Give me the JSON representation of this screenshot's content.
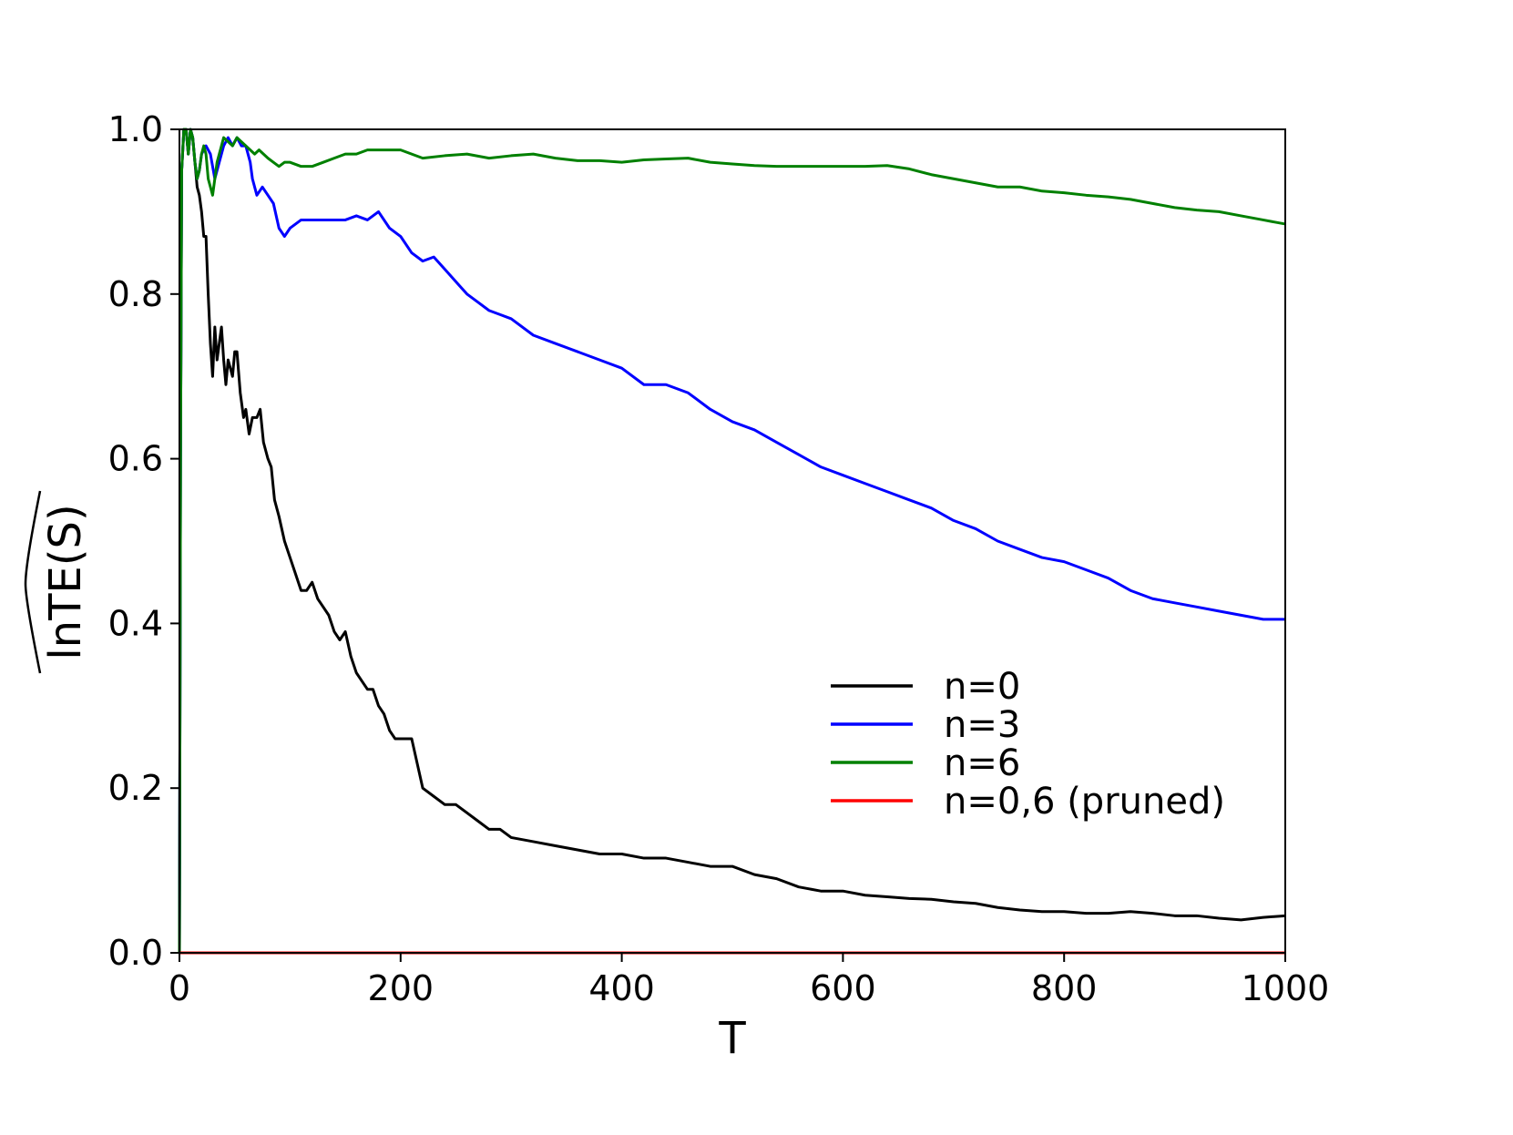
{
  "chart_data": {
    "type": "line",
    "title": "",
    "xlabel": "T",
    "ylabel": "lnTE(S)",
    "ylabel_hat": true,
    "xlim": [
      0,
      1000
    ],
    "ylim": [
      0.0,
      1.0
    ],
    "xticks": [
      0,
      200,
      400,
      600,
      800,
      1000
    ],
    "xtick_labels": [
      "0",
      "200",
      "400",
      "600",
      "800",
      "1000"
    ],
    "yticks": [
      0.0,
      0.2,
      0.4,
      0.6,
      0.8,
      1.0
    ],
    "ytick_labels": [
      "0.0",
      "0.2",
      "0.4",
      "0.6",
      "0.8",
      "1.0"
    ],
    "grid": false,
    "legend_position": "lower-right",
    "series": [
      {
        "name": "n=0",
        "color": "#000000",
        "x": [
          0,
          1,
          2,
          4,
          6,
          8,
          10,
          12,
          14,
          16,
          18,
          20,
          22,
          24,
          26,
          28,
          30,
          32,
          34,
          36,
          38,
          40,
          42,
          44,
          46,
          48,
          50,
          52,
          55,
          58,
          60,
          63,
          66,
          70,
          73,
          76,
          80,
          83,
          86,
          90,
          95,
          100,
          105,
          110,
          115,
          120,
          125,
          130,
          135,
          140,
          145,
          150,
          155,
          160,
          165,
          170,
          175,
          180,
          185,
          190,
          195,
          200,
          210,
          215,
          220,
          230,
          240,
          250,
          260,
          270,
          280,
          290,
          300,
          320,
          340,
          360,
          380,
          400,
          420,
          440,
          460,
          480,
          500,
          520,
          540,
          560,
          580,
          600,
          620,
          640,
          660,
          680,
          700,
          720,
          740,
          760,
          780,
          800,
          820,
          840,
          860,
          880,
          900,
          920,
          940,
          960,
          980,
          1000
        ],
        "values": [
          0.0,
          0.6,
          0.95,
          1.0,
          1.0,
          0.97,
          1.0,
          0.99,
          0.96,
          0.93,
          0.92,
          0.9,
          0.87,
          0.87,
          0.8,
          0.74,
          0.7,
          0.76,
          0.72,
          0.74,
          0.76,
          0.72,
          0.69,
          0.72,
          0.71,
          0.7,
          0.73,
          0.73,
          0.68,
          0.65,
          0.66,
          0.63,
          0.65,
          0.65,
          0.66,
          0.62,
          0.6,
          0.59,
          0.55,
          0.53,
          0.5,
          0.48,
          0.46,
          0.44,
          0.44,
          0.45,
          0.43,
          0.42,
          0.41,
          0.39,
          0.38,
          0.39,
          0.36,
          0.34,
          0.33,
          0.32,
          0.32,
          0.3,
          0.29,
          0.27,
          0.26,
          0.26,
          0.26,
          0.23,
          0.2,
          0.19,
          0.18,
          0.18,
          0.17,
          0.16,
          0.15,
          0.15,
          0.14,
          0.135,
          0.13,
          0.125,
          0.12,
          0.12,
          0.115,
          0.115,
          0.11,
          0.105,
          0.105,
          0.095,
          0.09,
          0.08,
          0.075,
          0.075,
          0.07,
          0.068,
          0.066,
          0.065,
          0.062,
          0.06,
          0.055,
          0.052,
          0.05,
          0.05,
          0.048,
          0.048,
          0.05,
          0.048,
          0.045,
          0.045,
          0.042,
          0.04,
          0.043,
          0.045
        ]
      },
      {
        "name": "n=3",
        "color": "#0000ff",
        "x": [
          0,
          1,
          2,
          4,
          6,
          8,
          10,
          12,
          14,
          16,
          18,
          20,
          24,
          28,
          32,
          36,
          40,
          44,
          48,
          52,
          56,
          60,
          62,
          64,
          66,
          70,
          75,
          80,
          85,
          90,
          95,
          100,
          110,
          120,
          130,
          140,
          150,
          160,
          170,
          180,
          190,
          200,
          210,
          220,
          230,
          240,
          250,
          260,
          270,
          280,
          290,
          300,
          320,
          340,
          360,
          380,
          400,
          420,
          440,
          460,
          480,
          500,
          520,
          540,
          560,
          580,
          600,
          620,
          640,
          660,
          680,
          700,
          720,
          740,
          760,
          780,
          800,
          820,
          840,
          860,
          880,
          900,
          920,
          940,
          960,
          980,
          1000
        ],
        "values": [
          0.0,
          0.6,
          0.95,
          1.0,
          1.0,
          0.97,
          1.0,
          0.99,
          0.96,
          0.94,
          0.95,
          0.97,
          0.98,
          0.97,
          0.94,
          0.96,
          0.98,
          0.99,
          0.98,
          0.99,
          0.98,
          0.98,
          0.97,
          0.96,
          0.94,
          0.92,
          0.93,
          0.92,
          0.91,
          0.88,
          0.87,
          0.88,
          0.89,
          0.89,
          0.89,
          0.89,
          0.89,
          0.895,
          0.89,
          0.9,
          0.88,
          0.87,
          0.85,
          0.84,
          0.845,
          0.83,
          0.815,
          0.8,
          0.79,
          0.78,
          0.775,
          0.77,
          0.75,
          0.74,
          0.73,
          0.72,
          0.71,
          0.69,
          0.69,
          0.68,
          0.66,
          0.645,
          0.635,
          0.62,
          0.605,
          0.59,
          0.58,
          0.57,
          0.56,
          0.55,
          0.54,
          0.525,
          0.515,
          0.5,
          0.49,
          0.48,
          0.475,
          0.465,
          0.455,
          0.44,
          0.43,
          0.425,
          0.42,
          0.415,
          0.41,
          0.405,
          0.405
        ]
      },
      {
        "name": "n=6",
        "color": "#008000",
        "x": [
          0,
          1,
          2,
          4,
          6,
          8,
          10,
          12,
          14,
          16,
          18,
          20,
          22,
          24,
          26,
          28,
          30,
          32,
          34,
          36,
          38,
          40,
          44,
          48,
          52,
          56,
          60,
          64,
          68,
          72,
          76,
          80,
          85,
          90,
          95,
          100,
          110,
          120,
          130,
          140,
          150,
          160,
          170,
          180,
          190,
          200,
          220,
          240,
          260,
          280,
          300,
          320,
          340,
          360,
          380,
          400,
          420,
          440,
          460,
          480,
          500,
          520,
          540,
          560,
          580,
          600,
          620,
          640,
          660,
          680,
          700,
          720,
          740,
          760,
          780,
          800,
          820,
          840,
          860,
          880,
          900,
          920,
          940,
          960,
          980,
          1000
        ],
        "values": [
          0.0,
          0.6,
          0.95,
          1.0,
          1.0,
          0.97,
          1.0,
          0.99,
          0.96,
          0.94,
          0.95,
          0.97,
          0.98,
          0.97,
          0.94,
          0.93,
          0.92,
          0.94,
          0.96,
          0.97,
          0.98,
          0.99,
          0.985,
          0.98,
          0.99,
          0.985,
          0.98,
          0.975,
          0.97,
          0.975,
          0.97,
          0.965,
          0.96,
          0.955,
          0.96,
          0.96,
          0.955,
          0.955,
          0.96,
          0.965,
          0.97,
          0.97,
          0.975,
          0.975,
          0.975,
          0.975,
          0.965,
          0.968,
          0.97,
          0.965,
          0.968,
          0.97,
          0.965,
          0.962,
          0.962,
          0.96,
          0.963,
          0.964,
          0.965,
          0.96,
          0.958,
          0.956,
          0.955,
          0.955,
          0.955,
          0.955,
          0.955,
          0.956,
          0.952,
          0.945,
          0.94,
          0.935,
          0.93,
          0.93,
          0.925,
          0.923,
          0.92,
          0.918,
          0.915,
          0.91,
          0.905,
          0.902,
          0.9,
          0.895,
          0.89,
          0.885
        ]
      },
      {
        "name": "n=0,6 (pruned)",
        "color": "#ff0000",
        "x": [
          0,
          1000
        ],
        "values": [
          0.0,
          0.0
        ]
      }
    ]
  }
}
